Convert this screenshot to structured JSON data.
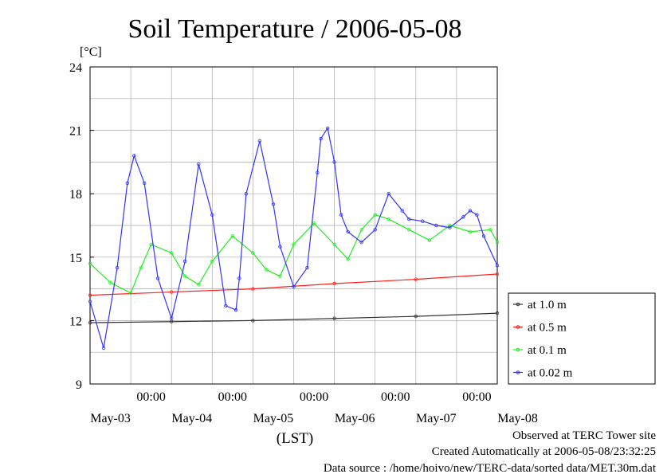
{
  "chart_data": {
    "type": "line",
    "title": "Soil Temperature / 2006-05-08",
    "ylabel": "[°C]",
    "xlabel": "(LST)",
    "ylim": [
      9,
      24
    ],
    "yticks": [
      9,
      12,
      15,
      18,
      21,
      24
    ],
    "x_unit": "hours since 2006-05-02 00:00 LST",
    "xlim": [
      12,
      72
    ],
    "time_ticks": [
      "00:00",
      "00:00",
      "00:00",
      "00:00",
      "00:00"
    ],
    "date_labels": [
      "May-03",
      "May-04",
      "May-05",
      "May-06",
      "May-07",
      "May-08"
    ],
    "grid": true,
    "legend_position": "right-bottom",
    "series": [
      {
        "name": "at 1.0 m",
        "color": "#333333",
        "x": [
          12,
          24,
          36,
          48,
          60,
          72
        ],
        "y": [
          11.9,
          11.95,
          12.0,
          12.1,
          12.2,
          12.35
        ]
      },
      {
        "name": "at 0.5 m",
        "color": "#ff2020",
        "x": [
          12,
          24,
          36,
          48,
          60,
          72
        ],
        "y": [
          13.2,
          13.35,
          13.5,
          13.75,
          13.95,
          14.2
        ]
      },
      {
        "name": "at 0.1 m",
        "color": "#22ee22",
        "x": [
          12,
          15,
          18,
          19.5,
          21,
          24,
          26,
          28,
          30,
          33,
          36,
          38,
          40,
          42,
          45,
          48,
          50,
          52,
          54,
          56,
          59,
          62,
          65,
          68,
          71,
          72
        ],
        "y": [
          14.7,
          13.8,
          13.3,
          14.5,
          15.6,
          15.2,
          14.1,
          13.7,
          14.8,
          16.0,
          15.2,
          14.4,
          14.1,
          15.6,
          16.6,
          15.6,
          14.9,
          16.3,
          17.0,
          16.8,
          16.3,
          15.8,
          16.5,
          16.2,
          16.3,
          15.7
        ]
      },
      {
        "name": "at 0.02 m",
        "color": "#3333ff",
        "x": [
          12,
          14,
          16,
          17.5,
          18.5,
          20,
          22,
          24,
          26,
          28,
          30,
          32,
          33.5,
          34,
          35,
          37,
          39,
          40,
          42,
          44,
          45.5,
          46,
          47,
          48,
          49,
          50,
          52,
          54,
          56,
          58,
          59,
          61,
          63,
          65,
          67,
          68,
          69,
          70,
          72
        ],
        "y": [
          12.9,
          10.7,
          14.5,
          18.5,
          19.8,
          18.5,
          14.0,
          12.1,
          14.8,
          19.4,
          17.0,
          12.7,
          12.5,
          14.0,
          18.0,
          20.5,
          17.5,
          15.5,
          13.6,
          14.5,
          19.0,
          20.6,
          21.1,
          19.5,
          17.0,
          16.2,
          15.7,
          16.3,
          18.0,
          17.2,
          16.8,
          16.7,
          16.5,
          16.4,
          16.9,
          17.2,
          17.0,
          16.0,
          14.6
        ]
      }
    ]
  },
  "footer": {
    "line1": "Observed at TERC Tower site",
    "line2": "Created Automatically at 2006-05-08/23:32:25",
    "line3": "Data source : /home/hoivo/new/TERC-data/sorted  data/MET.30m.dat"
  }
}
